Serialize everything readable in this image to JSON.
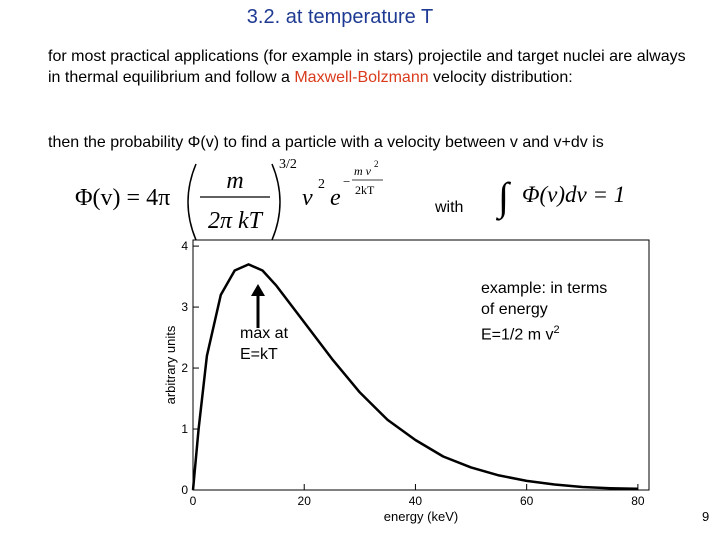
{
  "header": {
    "title": "3.2. at temperature T"
  },
  "intro": {
    "before": "for most practical applications (for example in stars) projectile and target nuclei are always in thermal equilibrium and follow a ",
    "highlight": "Maxwell-Bolzmann",
    "after": " velocity distribution:"
  },
  "probability_text": "then the probability Φ(v) to find a particle with a velocity between v and v+dv is",
  "formula": {
    "lhs": "Φ(v) = 4π",
    "numerator": "m",
    "denominator": "2π kT",
    "power": "3/2",
    "v": "v",
    "v_power": "2",
    "e": "e",
    "exp_sign": "−",
    "exp_numerator": "m v",
    "exp_numerator_power": "2",
    "exp_denominator": "2kT"
  },
  "with": "with",
  "normalization": {
    "integral": "∫",
    "body": "Φ(v)dv = 1"
  },
  "annotation_max": [
    "max at",
    "E=kT"
  ],
  "annotation_energy": {
    "lines": [
      "example: in terms",
      "of energy"
    ],
    "formula": "E=1/2 m v",
    "power": "2"
  },
  "page_number": "9",
  "chart_data": {
    "type": "line",
    "xlabel": "energy (keV)",
    "ylabel": "arbitrary units",
    "color": "#000000",
    "x": [
      0,
      1,
      2.5,
      5,
      7.5,
      10,
      12.5,
      15,
      20,
      25,
      30,
      35,
      40,
      45,
      50,
      55,
      60,
      65,
      70,
      75,
      80
    ],
    "values": [
      0,
      1.0,
      2.2,
      3.2,
      3.6,
      3.7,
      3.6,
      3.35,
      2.75,
      2.15,
      1.6,
      1.15,
      0.82,
      0.55,
      0.37,
      0.24,
      0.15,
      0.09,
      0.05,
      0.03,
      0.02
    ],
    "xlim": [
      0,
      82
    ],
    "ylim": [
      0,
      4.1
    ],
    "xticks": [
      0,
      20,
      40,
      60,
      80
    ],
    "yticks": [
      0,
      1,
      2,
      3,
      4
    ],
    "grid": false
  }
}
